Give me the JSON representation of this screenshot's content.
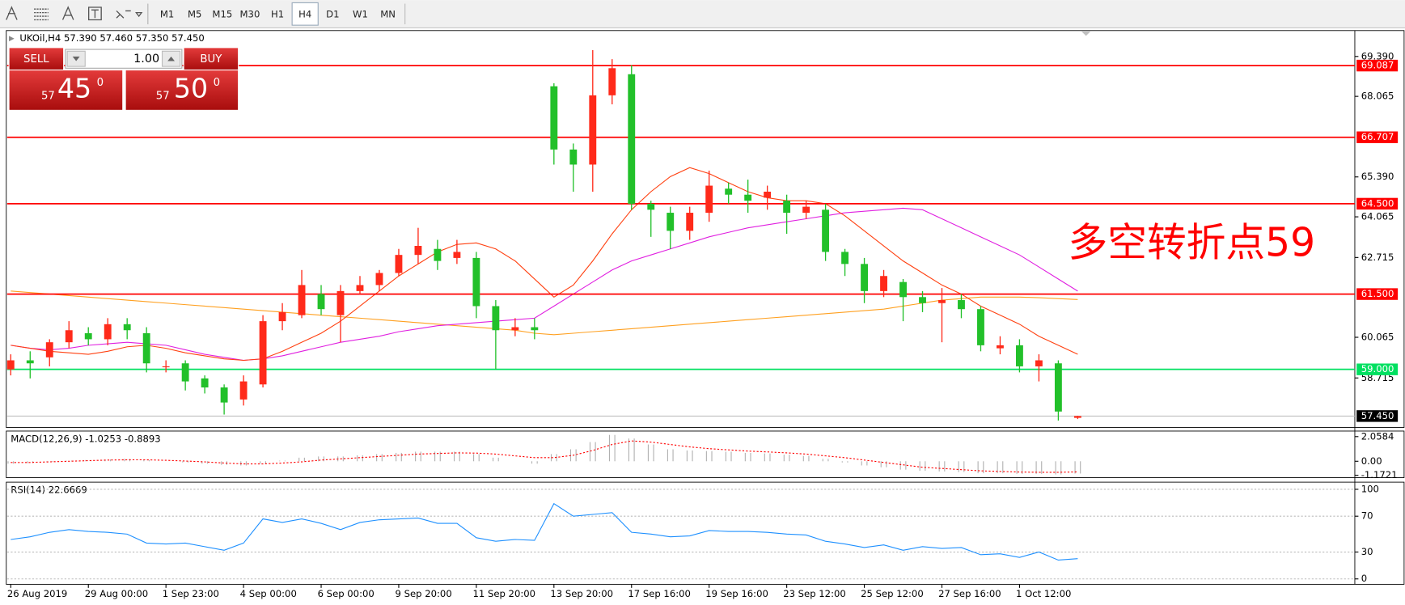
{
  "toolbar": {
    "timeframes": [
      "M1",
      "M5",
      "M15",
      "M30",
      "H1",
      "H4",
      "D1",
      "W1",
      "MN"
    ],
    "active": "H4"
  },
  "trade_panel": {
    "sell": "SELL",
    "lot": "1.00",
    "buy": "BUY",
    "sell_price": {
      "prefix": "57",
      "main": "45",
      "suffix": "0"
    },
    "buy_price": {
      "prefix": "57",
      "main": "50",
      "suffix": "0"
    }
  },
  "chart_data": [
    {
      "type": "candlestick",
      "title": "UKOil,H4 57.390 57.460 57.350 57.450",
      "categories": [
        "26 Aug 2019",
        null,
        null,
        null,
        "29 Aug 00:00",
        null,
        null,
        null,
        "1 Sep 23:00",
        null,
        null,
        null,
        "4 Sep 00:00",
        null,
        null,
        null,
        "6 Sep 00:00",
        null,
        null,
        null,
        "9 Sep 20:00",
        null,
        null,
        null,
        "11 Sep 20:00",
        null,
        null,
        null,
        "13 Sep 20:00",
        null,
        null,
        null,
        "17 Sep 16:00",
        null,
        null,
        null,
        "19 Sep 16:00",
        null,
        null,
        null,
        "23 Sep 12:00",
        null,
        null,
        null,
        "25 Sep 12:00",
        null,
        null,
        null,
        "27 Sep 16:00",
        null,
        null,
        null,
        "1 Oct 12:00",
        null,
        null,
        null
      ],
      "open": [
        59.0,
        59.3,
        59.4,
        59.9,
        60.2,
        60.0,
        60.5,
        60.2,
        59.1,
        59.2,
        58.7,
        58.4,
        58.0,
        58.5,
        60.6,
        60.8,
        61.5,
        60.8,
        61.6,
        61.8,
        62.2,
        62.8,
        63.0,
        62.7,
        62.7,
        61.1,
        60.3,
        60.4,
        68.4,
        66.3,
        65.8,
        68.1,
        68.8,
        64.5,
        64.2,
        63.6,
        64.2,
        65.0,
        64.8,
        64.7,
        64.6,
        64.2,
        64.3,
        62.9,
        62.5,
        61.6,
        61.9,
        61.4,
        61.2,
        61.3,
        61.0,
        59.7,
        59.8,
        59.1,
        59.2,
        57.39
      ],
      "high": [
        59.5,
        59.6,
        60.0,
        60.6,
        60.4,
        60.7,
        60.7,
        60.4,
        59.3,
        59.3,
        58.8,
        58.5,
        58.8,
        60.8,
        61.2,
        62.3,
        61.8,
        61.8,
        62.1,
        62.3,
        63.0,
        63.7,
        63.3,
        63.3,
        62.9,
        61.3,
        60.7,
        60.7,
        68.5,
        66.5,
        69.6,
        69.3,
        69.1,
        64.6,
        64.4,
        64.4,
        65.6,
        65.2,
        65.3,
        65.1,
        64.8,
        64.6,
        64.5,
        63.0,
        62.7,
        62.3,
        62.0,
        61.6,
        61.7,
        61.5,
        61.1,
        60.1,
        60.0,
        59.5,
        59.3,
        57.46
      ],
      "low": [
        58.8,
        58.7,
        59.1,
        59.7,
        59.8,
        59.8,
        60.0,
        58.9,
        58.9,
        58.3,
        58.2,
        57.5,
        57.8,
        58.4,
        60.3,
        60.7,
        60.8,
        59.9,
        61.5,
        61.6,
        62.1,
        62.5,
        62.3,
        62.5,
        60.7,
        59.0,
        60.1,
        60.0,
        65.8,
        64.9,
        64.9,
        67.8,
        64.3,
        63.4,
        63.0,
        63.3,
        63.9,
        64.5,
        64.2,
        64.3,
        63.5,
        64.0,
        62.6,
        62.1,
        61.2,
        61.4,
        60.6,
        60.9,
        59.9,
        60.7,
        59.6,
        59.5,
        58.9,
        58.6,
        57.3,
        57.35
      ],
      "close": [
        59.3,
        59.2,
        59.9,
        60.3,
        60.0,
        60.5,
        60.3,
        59.2,
        59.1,
        58.6,
        58.4,
        57.9,
        58.6,
        60.6,
        60.9,
        61.8,
        61.0,
        61.6,
        61.8,
        62.2,
        62.8,
        63.1,
        62.6,
        62.9,
        61.1,
        60.3,
        60.4,
        60.3,
        66.3,
        65.8,
        68.1,
        69.0,
        64.5,
        64.3,
        63.6,
        64.2,
        65.1,
        64.8,
        64.6,
        64.9,
        64.2,
        64.4,
        62.9,
        62.5,
        61.6,
        62.1,
        61.4,
        61.2,
        61.3,
        61.0,
        59.8,
        59.8,
        59.1,
        59.3,
        57.6,
        57.45
      ],
      "up_color": "#ff2a1a",
      "down_color": "#22c02a",
      "lines": [
        {
          "color": "#ffa020",
          "values": [
            61.6,
            61.55,
            61.5,
            61.45,
            61.4,
            61.35,
            61.3,
            61.25,
            61.2,
            61.15,
            61.1,
            61.05,
            61.0,
            60.95,
            60.9,
            60.85,
            60.8,
            60.75,
            60.7,
            60.65,
            60.6,
            60.55,
            60.5,
            60.45,
            60.4,
            60.35,
            60.3,
            60.2,
            60.15,
            60.2,
            60.25,
            60.3,
            60.35,
            60.4,
            60.45,
            60.5,
            60.55,
            60.6,
            60.65,
            60.7,
            60.75,
            60.8,
            60.85,
            60.9,
            60.95,
            61.0,
            61.1,
            61.2,
            61.3,
            61.35,
            61.4,
            61.4,
            61.4,
            61.38,
            61.35,
            61.32
          ]
        },
        {
          "color": "#e020e0",
          "values": [
            59.8,
            59.7,
            59.65,
            59.7,
            59.8,
            59.85,
            59.9,
            59.85,
            59.8,
            59.65,
            59.5,
            59.4,
            59.3,
            59.35,
            59.45,
            59.6,
            59.75,
            59.9,
            60.0,
            60.1,
            60.25,
            60.35,
            60.45,
            60.5,
            60.55,
            60.6,
            60.65,
            60.7,
            61.1,
            61.5,
            61.9,
            62.3,
            62.6,
            62.8,
            63.0,
            63.2,
            63.4,
            63.55,
            63.7,
            63.8,
            63.9,
            64.0,
            64.1,
            64.2,
            64.25,
            64.3,
            64.35,
            64.3,
            64.0,
            63.7,
            63.4,
            63.1,
            62.8,
            62.4,
            62.0,
            61.6
          ]
        },
        {
          "color": "#ff4010",
          "values": [
            59.8,
            59.7,
            59.6,
            59.55,
            59.5,
            59.6,
            59.75,
            59.8,
            59.7,
            59.55,
            59.45,
            59.35,
            59.3,
            59.35,
            59.6,
            59.9,
            60.2,
            60.6,
            61.1,
            61.6,
            62.1,
            62.5,
            62.9,
            63.15,
            63.2,
            63.0,
            62.6,
            62.0,
            61.4,
            61.8,
            62.6,
            63.5,
            64.3,
            64.9,
            65.4,
            65.7,
            65.5,
            65.2,
            64.9,
            64.7,
            64.6,
            64.6,
            64.5,
            64.1,
            63.6,
            63.1,
            62.6,
            62.2,
            61.8,
            61.5,
            61.1,
            60.8,
            60.5,
            60.1,
            59.8,
            59.5
          ]
        }
      ],
      "levels": [
        {
          "value": 69.087,
          "label": "69.087",
          "color": "#ff0000",
          "label_color": "#ff0000"
        },
        {
          "value": 66.707,
          "label": "66.707",
          "color": "#ff0000",
          "label_color": "#ff0000"
        },
        {
          "value": 64.5,
          "label": "64.500",
          "color": "#ff0000",
          "label_color": "#ff0000"
        },
        {
          "value": 61.5,
          "label": "61.500",
          "color": "#ff0000",
          "label_color": "#ff0000"
        },
        {
          "value": 59.0,
          "label": "59.000",
          "color": "#00e060",
          "label_color": "#00e060"
        },
        {
          "value": 57.45,
          "label": "57.450",
          "color": "#c0c0c0",
          "label_color": "#000000"
        }
      ],
      "annotation": {
        "text": "多空转折点59",
        "color": "#ff0000"
      },
      "ylim": [
        57.07,
        70.22
      ],
      "yticks": [
        {
          "value": 69.39,
          "label": "69.390"
        },
        {
          "value": 68.065,
          "label": "68.065"
        },
        {
          "value": 65.39,
          "label": "65.390"
        },
        {
          "value": 64.065,
          "label": "64.065"
        },
        {
          "value": 62.715,
          "label": "62.715"
        },
        {
          "value": 60.065,
          "label": "60.065"
        },
        {
          "value": 58.715,
          "label": "58.715"
        }
      ],
      "grid": false
    },
    {
      "type": "macd",
      "title": "MACD(12,26,9) -1.0253 -0.8893",
      "values": [
        -0.2,
        -0.15,
        -0.05,
        0.05,
        0.1,
        0.15,
        0.2,
        0.1,
        0,
        -0.1,
        -0.2,
        -0.3,
        -0.35,
        -0.2,
        0.05,
        0.3,
        0.4,
        0.4,
        0.5,
        0.6,
        0.7,
        0.8,
        0.8,
        0.8,
        0.6,
        0.3,
        0,
        -0.2,
        0.6,
        1.0,
        1.6,
        2.2,
        1.9,
        1.4,
        1.0,
        0.9,
        0.85,
        0.8,
        0.7,
        0.65,
        0.55,
        0.45,
        0.2,
        -0.1,
        -0.35,
        -0.5,
        -0.7,
        -0.8,
        -0.85,
        -0.9,
        -1.0,
        -1.0,
        -1.05,
        -1.05,
        -1.1,
        -1.0253
      ],
      "signal": [
        -0.1,
        -0.1,
        -0.05,
        0,
        0.05,
        0.1,
        0.12,
        0.12,
        0.08,
        0.02,
        -0.05,
        -0.15,
        -0.22,
        -0.22,
        -0.15,
        -0.05,
        0.1,
        0.2,
        0.3,
        0.4,
        0.5,
        0.6,
        0.65,
        0.7,
        0.68,
        0.6,
        0.45,
        0.3,
        0.3,
        0.5,
        0.9,
        1.4,
        1.7,
        1.6,
        1.4,
        1.2,
        1.05,
        0.95,
        0.85,
        0.78,
        0.7,
        0.6,
        0.45,
        0.3,
        0.1,
        -0.1,
        -0.3,
        -0.5,
        -0.6,
        -0.7,
        -0.8,
        -0.85,
        -0.9,
        -0.92,
        -0.92,
        -0.8893
      ],
      "color": "#b0b0b0",
      "signal_color": "#ff0000",
      "ylim": [
        -1.37,
        2.52
      ],
      "yticks": [
        2.0584,
        {
          "value": 0,
          "label": "0.00"
        },
        -1.1721
      ]
    },
    {
      "type": "line",
      "title": "RSI(14) 22.6669",
      "values": [
        44,
        47,
        52,
        55,
        53,
        52,
        50,
        40,
        39,
        40,
        36,
        32,
        40,
        67,
        63,
        67,
        62,
        55,
        63,
        66,
        67,
        68,
        62,
        62,
        46,
        42,
        44,
        43,
        84,
        70,
        72,
        74,
        52,
        50,
        47,
        48,
        54,
        53,
        53,
        52,
        50,
        49,
        42,
        39,
        35,
        38,
        32,
        36,
        34,
        35,
        27,
        28,
        24,
        30,
        21,
        22.6669
      ],
      "color": "#1e90ff",
      "ylim": [
        -6,
        108
      ],
      "yticks": [
        0,
        30,
        70,
        100
      ],
      "grid": true
    }
  ]
}
